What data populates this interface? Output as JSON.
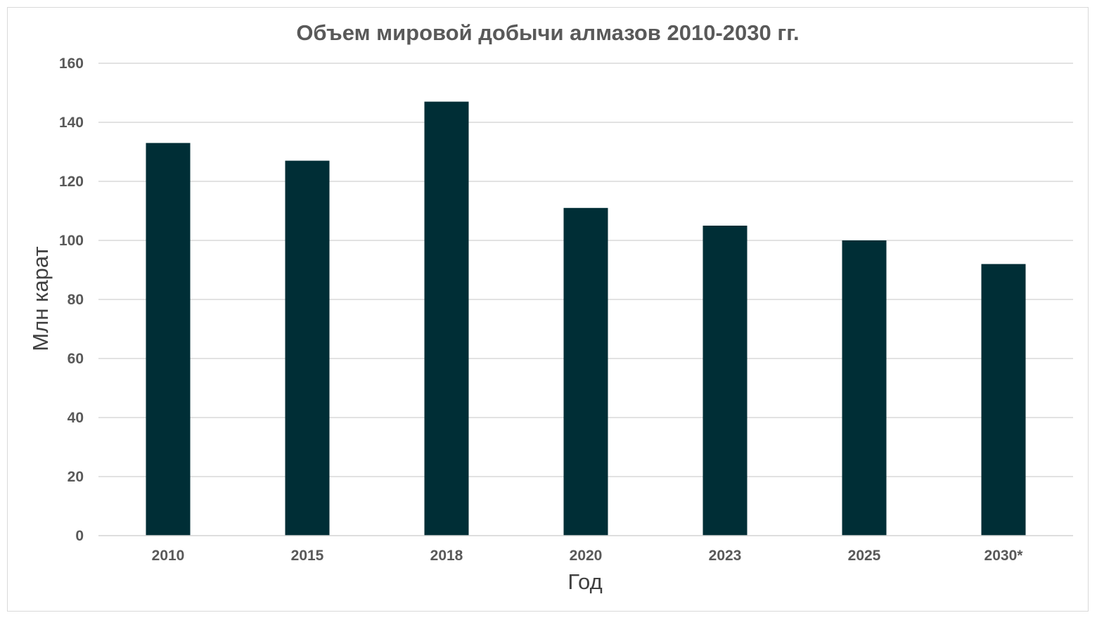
{
  "chart_data": {
    "type": "bar",
    "title": "Объем мировой добычи алмазов 2010-2030 гг.",
    "xlabel": "Год",
    "ylabel": "Млн карат",
    "categories": [
      "2010",
      "2015",
      "2018",
      "2020",
      "2023",
      "2025",
      "2030*"
    ],
    "values": [
      133,
      127,
      147,
      111,
      105,
      100,
      92
    ],
    "ylim": [
      0,
      160
    ],
    "yticks": [
      0,
      20,
      40,
      60,
      80,
      100,
      120,
      140,
      160
    ],
    "grid": true,
    "legend": "none",
    "bar_color": "#002e36"
  }
}
